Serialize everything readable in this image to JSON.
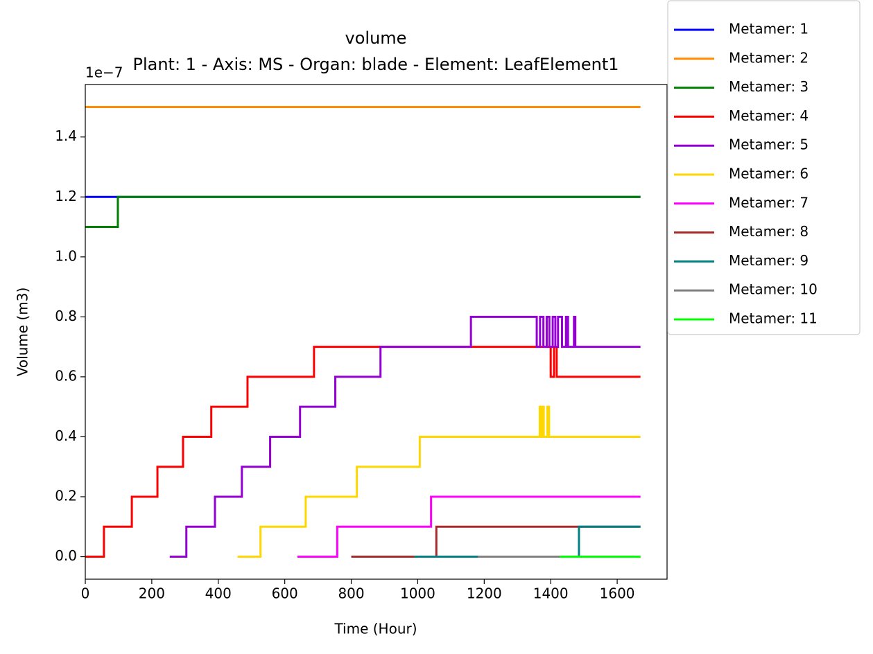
{
  "chart_data": {
    "type": "line",
    "title": "volume",
    "subtitle": "Plant: 1 - Axis: MS - Organ: blade - Element: LeafElement1",
    "x_label": "Time (Hour)",
    "y_label": "Volume (m3)",
    "y_offset_label": "1e−7",
    "xlim": [
      0,
      1750
    ],
    "ylim": [
      -0.075,
      1.575
    ],
    "xticks": [
      0,
      200,
      400,
      600,
      800,
      1000,
      1200,
      1400,
      1600
    ],
    "yticks": [
      {
        "value": 0,
        "label": "0.0"
      },
      0.2,
      0.4,
      0.6,
      0.8,
      {
        "value": 1,
        "label": "1.0"
      },
      1.2,
      1.4
    ],
    "grid": false,
    "legend": "outside upper right",
    "series": [
      {
        "name": "Metamer: 1",
        "color": "#0000ff",
        "x": [
          0,
          1670
        ],
        "values": [
          1.2,
          1.2
        ]
      },
      {
        "name": "Metamer: 2",
        "color": "#ff8c00",
        "x": [
          0,
          1670
        ],
        "values": [
          1.5,
          1.5
        ]
      },
      {
        "name": "Metamer: 3",
        "color": "#008000",
        "x": [
          0,
          98,
          98,
          1670
        ],
        "values": [
          1.1,
          1.1,
          1.2,
          1.2
        ]
      },
      {
        "name": "Metamer: 4",
        "color": "#ff0000",
        "x": [
          0,
          56,
          56,
          140,
          140,
          217,
          217,
          294,
          294,
          379,
          379,
          488,
          488,
          688,
          688,
          1400,
          1400,
          1410,
          1410,
          1418,
          1418,
          1670
        ],
        "values": [
          0,
          0,
          0.1,
          0.1,
          0.2,
          0.2,
          0.3,
          0.3,
          0.4,
          0.4,
          0.5,
          0.5,
          0.6,
          0.6,
          0.7,
          0.7,
          0.6,
          0.6,
          0.7,
          0.7,
          0.6,
          0.6
        ]
      },
      {
        "name": "Metamer: 5",
        "color": "#9400d3",
        "x": [
          254,
          304,
          304,
          390,
          390,
          471,
          471,
          556,
          556,
          646,
          646,
          752,
          752,
          888,
          888,
          1160,
          1160,
          1358,
          1358,
          1368,
          1368,
          1378,
          1378,
          1388,
          1388,
          1396,
          1396,
          1406,
          1406,
          1414,
          1414,
          1422,
          1422,
          1434,
          1434,
          1446,
          1446,
          1452,
          1452,
          1470,
          1470,
          1474,
          1474,
          1670
        ],
        "values": [
          0,
          0,
          0.1,
          0.1,
          0.2,
          0.2,
          0.3,
          0.3,
          0.4,
          0.4,
          0.5,
          0.5,
          0.6,
          0.6,
          0.7,
          0.7,
          0.8,
          0.8,
          0.7,
          0.7,
          0.8,
          0.8,
          0.7,
          0.7,
          0.8,
          0.8,
          0.7,
          0.7,
          0.8,
          0.8,
          0.7,
          0.7,
          0.8,
          0.8,
          0.7,
          0.7,
          0.8,
          0.8,
          0.7,
          0.7,
          0.8,
          0.8,
          0.7,
          0.7
        ]
      },
      {
        "name": "Metamer: 6",
        "color": "#ffd700",
        "x": [
          458,
          527,
          527,
          663,
          663,
          817,
          817,
          1006,
          1006,
          1367,
          1367,
          1371,
          1371,
          1375,
          1375,
          1379,
          1379,
          1390,
          1390,
          1395,
          1395,
          1670
        ],
        "values": [
          0,
          0,
          0.1,
          0.1,
          0.2,
          0.2,
          0.3,
          0.3,
          0.4,
          0.4,
          0.5,
          0.5,
          0.4,
          0.4,
          0.5,
          0.5,
          0.4,
          0.4,
          0.5,
          0.5,
          0.4,
          0.4
        ]
      },
      {
        "name": "Metamer: 7",
        "color": "#ff00ff",
        "x": [
          638,
          758,
          758,
          1040,
          1040,
          1670
        ],
        "values": [
          0,
          0,
          0.1,
          0.1,
          0.2,
          0.2
        ]
      },
      {
        "name": "Metamer: 8",
        "color": "#a52a2a",
        "x": [
          800,
          1056,
          1056,
          1670
        ],
        "values": [
          0,
          0,
          0.1,
          0.1
        ]
      },
      {
        "name": "Metamer: 9",
        "color": "#008080",
        "x": [
          990,
          1485,
          1485,
          1670
        ],
        "values": [
          0,
          0,
          0.1,
          0.1
        ]
      },
      {
        "name": "Metamer: 10",
        "color": "#808080",
        "x": [
          1181,
          1670
        ],
        "values": [
          0,
          0
        ]
      },
      {
        "name": "Metamer: 11",
        "color": "#00ff00",
        "x": [
          1427,
          1670
        ],
        "values": [
          0,
          0
        ]
      }
    ]
  }
}
